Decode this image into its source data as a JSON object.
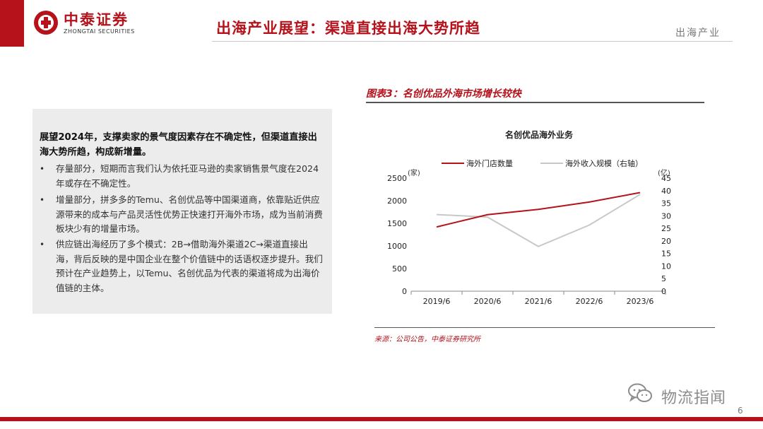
{
  "header": {
    "logo_cn": "中泰证券",
    "logo_en": "ZHONGTAI SECURITIES",
    "title": "出海产业展望：渠道直接出海大势所趋",
    "section": "出海产业"
  },
  "panel": {
    "lead": "展望2024年，支撑卖家的景气度因素存在不确定性，但渠道直接出海大势所趋，构成新增量。",
    "bullets": [
      "存量部分，短期而言我们认为依托亚马逊的卖家销售景气度在2024年或存在不确定性。",
      "增量部分，拼多多的Temu、名创优品等中国渠道商，依靠贴近供应源带来的成本与产品灵活性优势正快速打开海外市场，成为当前消费板块少有的增量市场。",
      "供应链出海经历了多个模式：2B→借助海外渠道2C→渠道直接出海，背后反映的是中国企业在整个价值链中的话语权逐步提升。我们预计在产业趋势上，以Temu、名创优品为代表的渠道将成为出海价值链的主体。"
    ],
    "bullet_glyph": "•"
  },
  "figure": {
    "caption": "图表3：名创优品外海市场增长较快",
    "source": "来源：公司公告，中泰证券研究所"
  },
  "chart_data": {
    "type": "line",
    "title": "名创优品海外业务",
    "categories": [
      "2019/6",
      "2020/6",
      "2021/6",
      "2022/6",
      "2023/6"
    ],
    "left_unit": "(家)",
    "right_unit": "(亿)",
    "left_ylim": [
      0,
      2500
    ],
    "left_ticks": [
      0,
      500,
      1000,
      1500,
      2000,
      2500
    ],
    "right_ylim": [
      0,
      45
    ],
    "right_ticks": [
      0,
      5,
      10,
      15,
      20,
      25,
      30,
      35,
      40,
      45
    ],
    "grid": false,
    "legend_position": "top",
    "series": [
      {
        "name": "海外门店数量",
        "axis": "left",
        "color": "#b5121b",
        "values": [
          1420,
          1690,
          1810,
          1970,
          2180
        ]
      },
      {
        "name": "海外收入规模（右轴）",
        "axis": "right",
        "color": "#c8c8c8",
        "values": [
          30.5,
          29.5,
          17.8,
          26.3,
          38.5
        ]
      }
    ]
  },
  "watermark": "物流指闻",
  "page_number": "6",
  "colors": {
    "brand_red": "#b5121b",
    "panel_gray": "#ececec"
  }
}
